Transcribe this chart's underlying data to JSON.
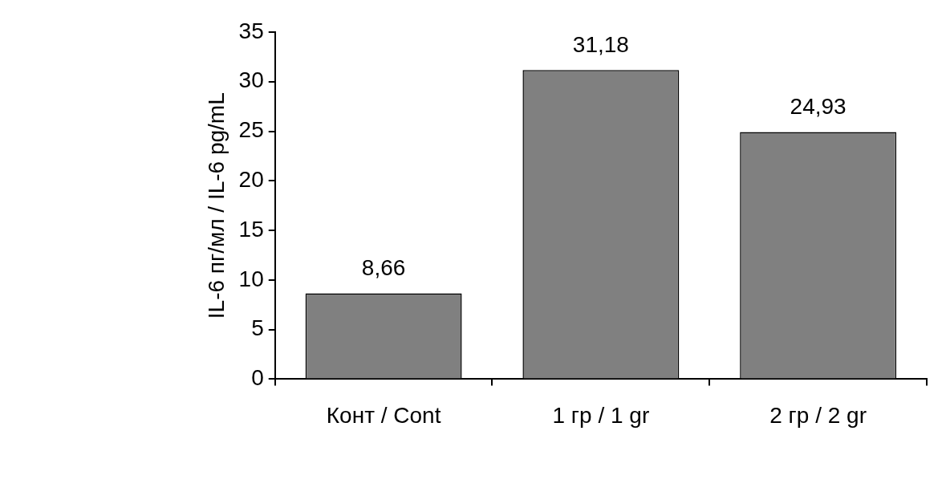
{
  "chart_data": {
    "type": "bar",
    "ylabel": "IL-6 пг/мл / IL-6 pg/mL",
    "categories": [
      "Конт / Cont",
      "1 гр / 1 gr",
      "2 гр / 2 gr"
    ],
    "values": [
      8.66,
      31.18,
      24.93
    ],
    "value_labels": [
      "8,66",
      "31,18",
      "24,93"
    ],
    "color": "#808080",
    "ylim": [
      0,
      35
    ],
    "yticks": [
      0,
      5,
      10,
      15,
      20,
      25,
      30,
      35
    ],
    "grid": false,
    "legend": false
  }
}
